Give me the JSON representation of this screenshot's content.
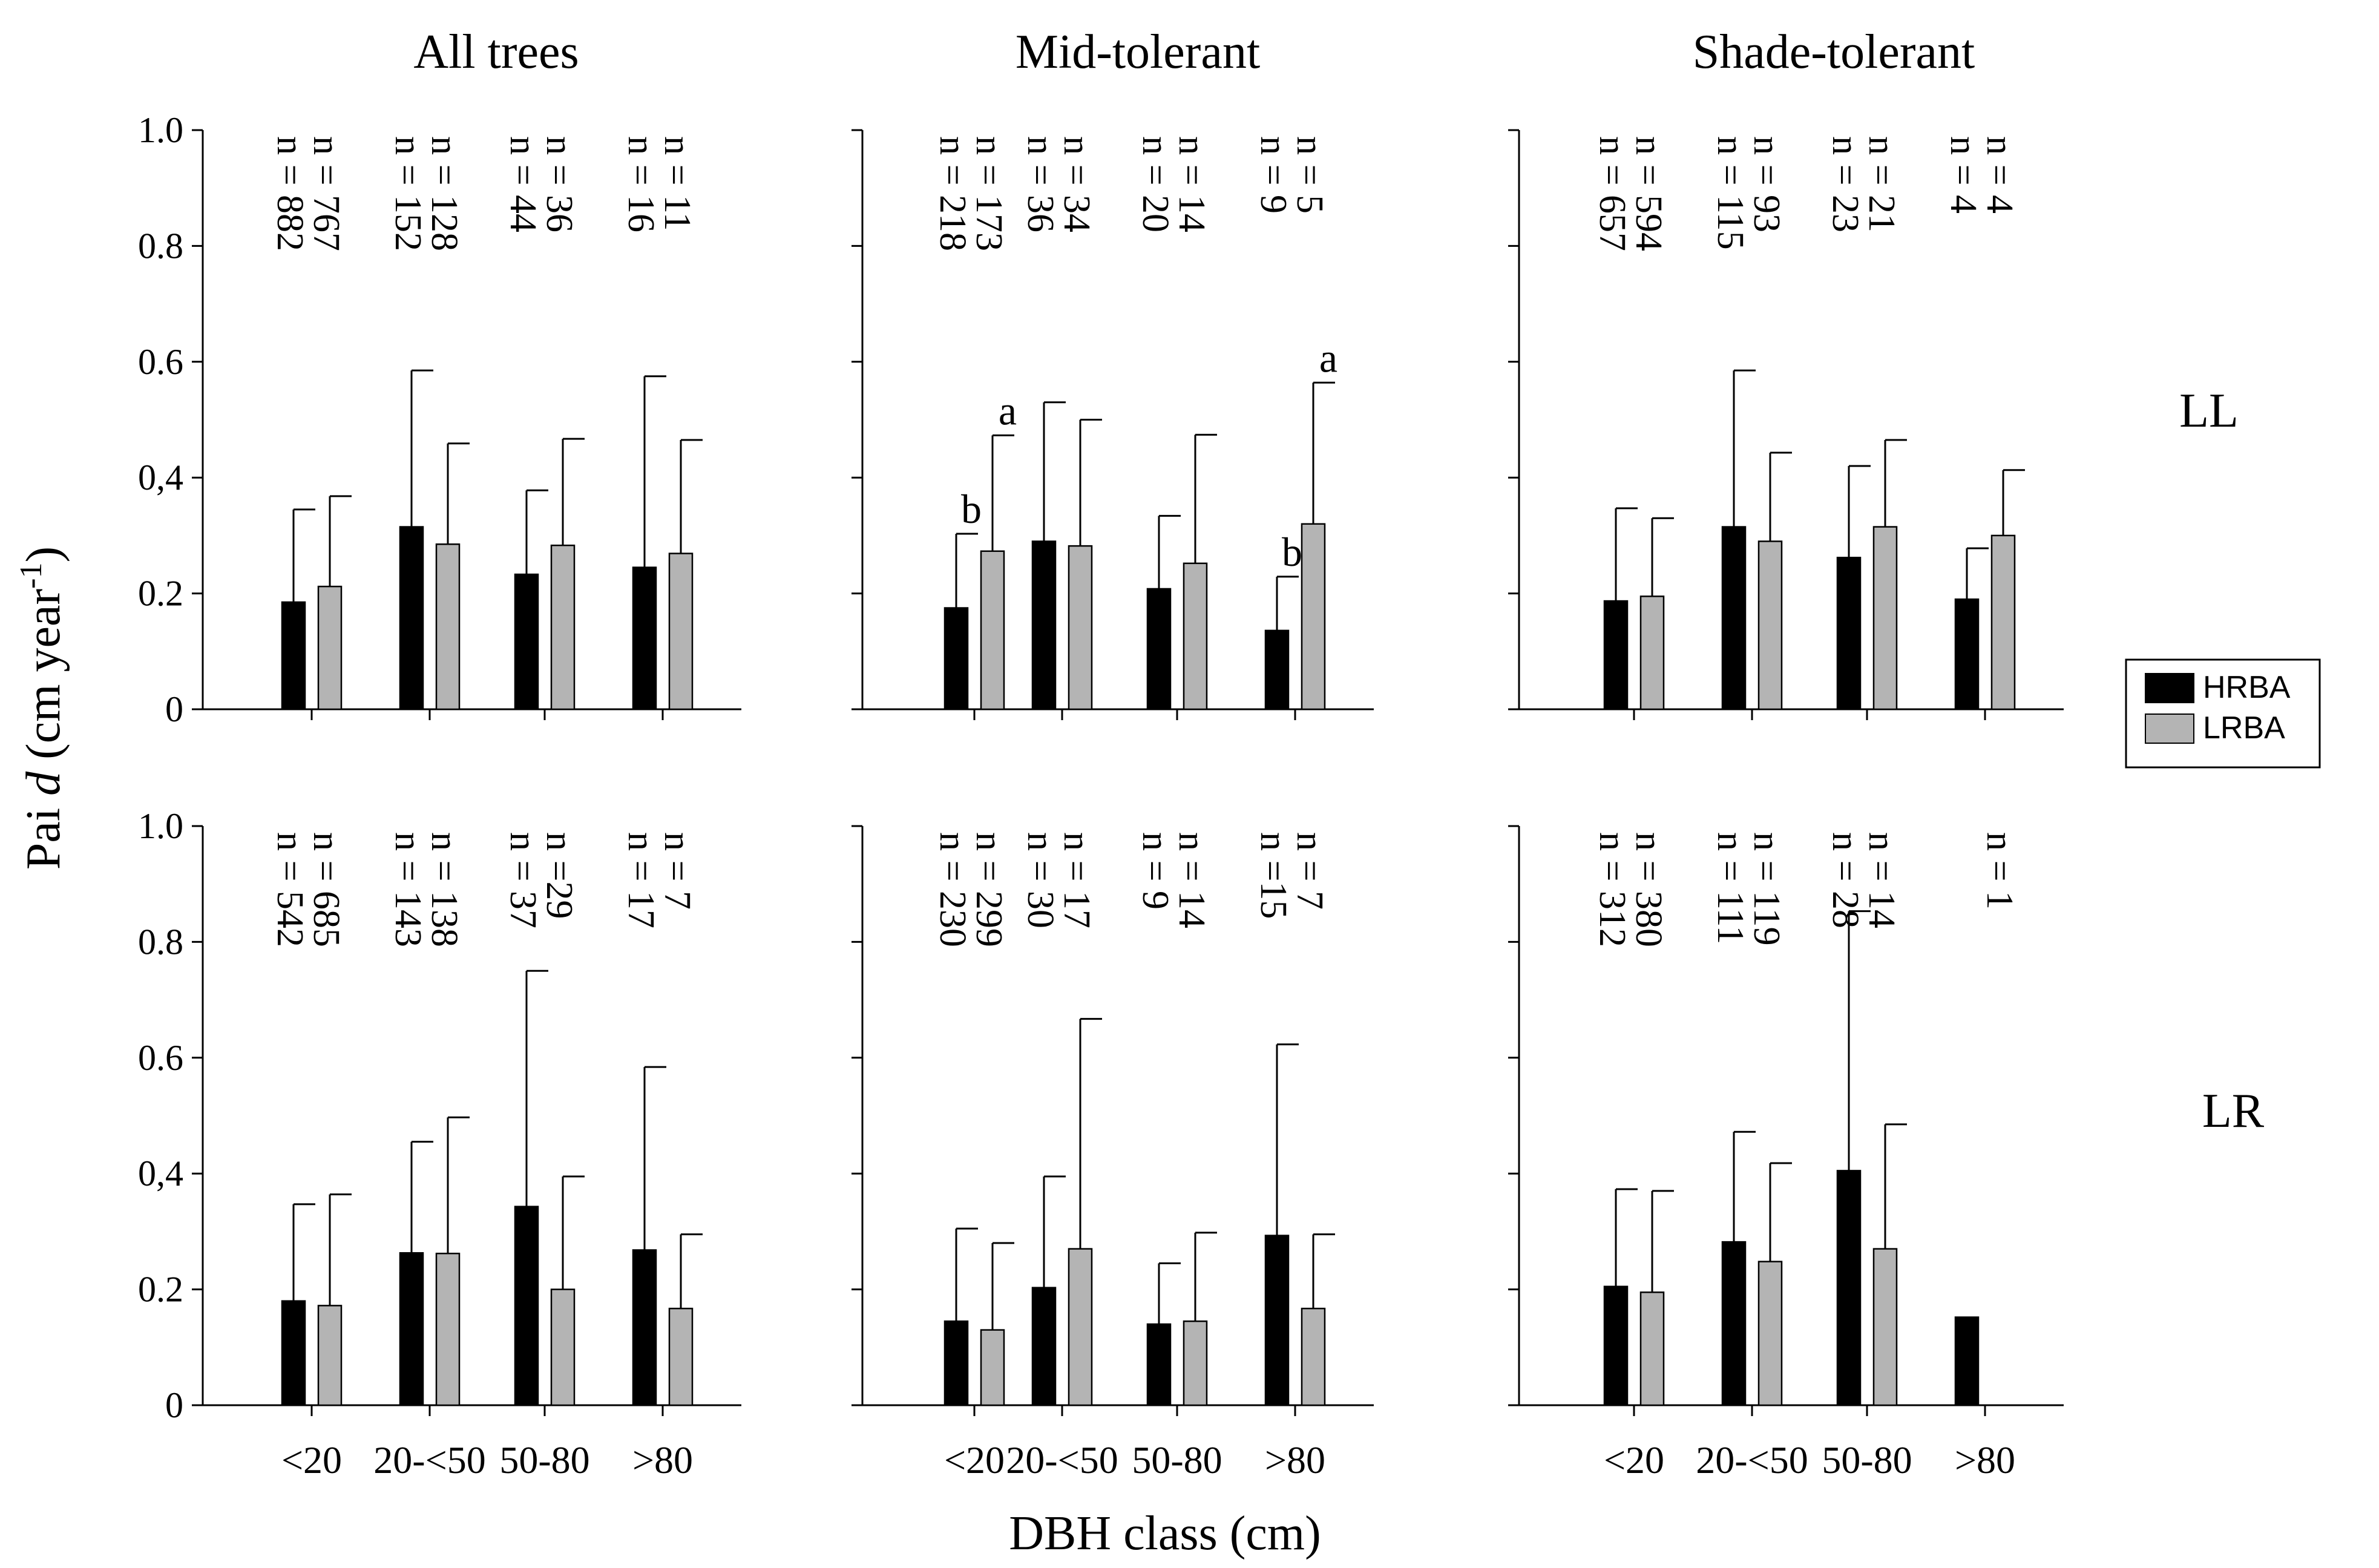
{
  "chart_data": {
    "type": "bar",
    "ylabel_main": "Pai ",
    "ylabel_italic": "d",
    "ylabel_units": " (cm year",
    "ylabel_sup": "-1",
    "ylabel_close": ")",
    "xlabel": "DBH class (cm)",
    "ylim": [
      0,
      1.0
    ],
    "yticks": [
      "0",
      "0.2",
      "0,4",
      "0.6",
      "0.8",
      "1.0"
    ],
    "ytick_values": [
      0,
      0.2,
      0.4,
      0.6,
      0.8,
      1.0
    ],
    "legend": {
      "position": "right",
      "entries": [
        {
          "name": "HRBA",
          "color": "#000000"
        },
        {
          "name": "LRBA",
          "color": "#b4b4b4"
        }
      ]
    },
    "column_titles": [
      "All trees",
      "Mid-tolerant",
      "Shade-tolerant"
    ],
    "row_labels": [
      "LL",
      "LR"
    ],
    "panels": [
      {
        "row": 0,
        "col": 0,
        "categories": [
          "<20",
          "20-<50",
          "50-80",
          ">80"
        ],
        "series": [
          {
            "name": "HRBA",
            "values": [
              0.185,
              0.315,
              0.233,
              0.245
            ],
            "errors": [
              0.16,
              0.27,
              0.145,
              0.33
            ]
          },
          {
            "name": "LRBA",
            "values": [
              0.212,
              0.285,
              0.283,
              0.269
            ],
            "errors": [
              0.156,
              0.174,
              0.184,
              0.196
            ]
          }
        ],
        "n_labels": [
          [
            "n = 882",
            "n = 767"
          ],
          [
            "n = 152",
            "n = 128"
          ],
          [
            "n = 44",
            "n = 36"
          ],
          [
            "n = 16",
            "n = 11"
          ]
        ],
        "sig_labels": []
      },
      {
        "row": 0,
        "col": 1,
        "categories": [
          "<20",
          "20-<50",
          "50-80",
          ">80"
        ],
        "series": [
          {
            "name": "HRBA",
            "values": [
              0.175,
              0.29,
              0.208,
              0.136
            ],
            "errors": [
              0.128,
              0.24,
              0.126,
              0.093
            ]
          },
          {
            "name": "LRBA",
            "values": [
              0.273,
              0.282,
              0.252,
              0.32
            ],
            "errors": [
              0.2,
              0.218,
              0.222,
              0.244
            ]
          }
        ],
        "n_labels": [
          [
            "n = 218",
            "n = 173"
          ],
          [
            "n = 36",
            "n = 34"
          ],
          [
            "n = 20",
            "n = 14"
          ],
          [
            "n = 9",
            "n = 5"
          ]
        ],
        "sig_labels": [
          {
            "cat": 0,
            "bar": 0,
            "text": "b"
          },
          {
            "cat": 0,
            "bar": 1,
            "text": "a"
          },
          {
            "cat": 3,
            "bar": 0,
            "text": "b"
          },
          {
            "cat": 3,
            "bar": 1,
            "text": "a"
          }
        ]
      },
      {
        "row": 0,
        "col": 2,
        "categories": [
          "<20",
          "20-<50",
          "50-80",
          ">80"
        ],
        "series": [
          {
            "name": "HRBA",
            "values": [
              0.187,
              0.315,
              0.262,
              0.19
            ],
            "errors": [
              0.16,
              0.27,
              0.158,
              0.088
            ]
          },
          {
            "name": "LRBA",
            "values": [
              0.195,
              0.29,
              0.315,
              0.3
            ],
            "errors": [
              0.135,
              0.153,
              0.15,
              0.113
            ]
          }
        ],
        "n_labels": [
          [
            "n = 657",
            "n = 594"
          ],
          [
            "n = 115",
            "n = 93"
          ],
          [
            "n = 23",
            "n = 21"
          ],
          [
            "n = 4",
            "n = 4"
          ]
        ],
        "sig_labels": []
      },
      {
        "row": 1,
        "col": 0,
        "categories": [
          "<20",
          "20-<50",
          "50-80",
          ">80"
        ],
        "series": [
          {
            "name": "HRBA",
            "values": [
              0.18,
              0.263,
              0.343,
              0.268
            ],
            "errors": [
              0.167,
              0.192,
              0.407,
              0.316
            ]
          },
          {
            "name": "LRBA",
            "values": [
              0.172,
              0.262,
              0.2,
              0.167
            ],
            "errors": [
              0.192,
              0.235,
              0.195,
              0.128
            ]
          }
        ],
        "n_labels": [
          [
            "n = 542",
            "n = 685"
          ],
          [
            "n = 143",
            "n = 138"
          ],
          [
            "n = 37",
            "n =29"
          ],
          [
            "n = 17",
            "n = 7"
          ]
        ],
        "sig_labels": []
      },
      {
        "row": 1,
        "col": 1,
        "categories": [
          "<20",
          "20-<50",
          "50-80",
          ">80"
        ],
        "series": [
          {
            "name": "HRBA",
            "values": [
              0.145,
              0.203,
              0.14,
              0.293
            ],
            "errors": [
              0.16,
              0.192,
              0.105,
              0.33
            ]
          },
          {
            "name": "LRBA",
            "values": [
              0.13,
              0.27,
              0.145,
              0.167
            ],
            "errors": [
              0.15,
              0.397,
              0.153,
              0.128
            ]
          }
        ],
        "n_labels": [
          [
            "n = 230",
            "n = 299"
          ],
          [
            "n = 30",
            "n = 17"
          ],
          [
            "n = 9",
            "n = 14"
          ],
          [
            "n =15",
            "n = 7"
          ]
        ],
        "sig_labels": []
      },
      {
        "row": 1,
        "col": 2,
        "categories": [
          "<20",
          "20-<50",
          "50-80",
          ">80"
        ],
        "series": [
          {
            "name": "HRBA",
            "values": [
              0.205,
              0.282,
              0.405,
              0.152
            ],
            "errors": [
              0.168,
              0.19,
              0.448,
              0
            ]
          },
          {
            "name": "LRBA",
            "values": [
              0.195,
              0.248,
              0.27,
              null
            ],
            "errors": [
              0.175,
              0.17,
              0.215,
              null
            ]
          }
        ],
        "n_labels": [
          [
            "n = 312",
            "n = 380"
          ],
          [
            "n = 111",
            "n = 119"
          ],
          [
            "n = 28",
            "n = 14"
          ],
          [
            "",
            "n = 1"
          ]
        ],
        "sig_labels": []
      }
    ]
  }
}
